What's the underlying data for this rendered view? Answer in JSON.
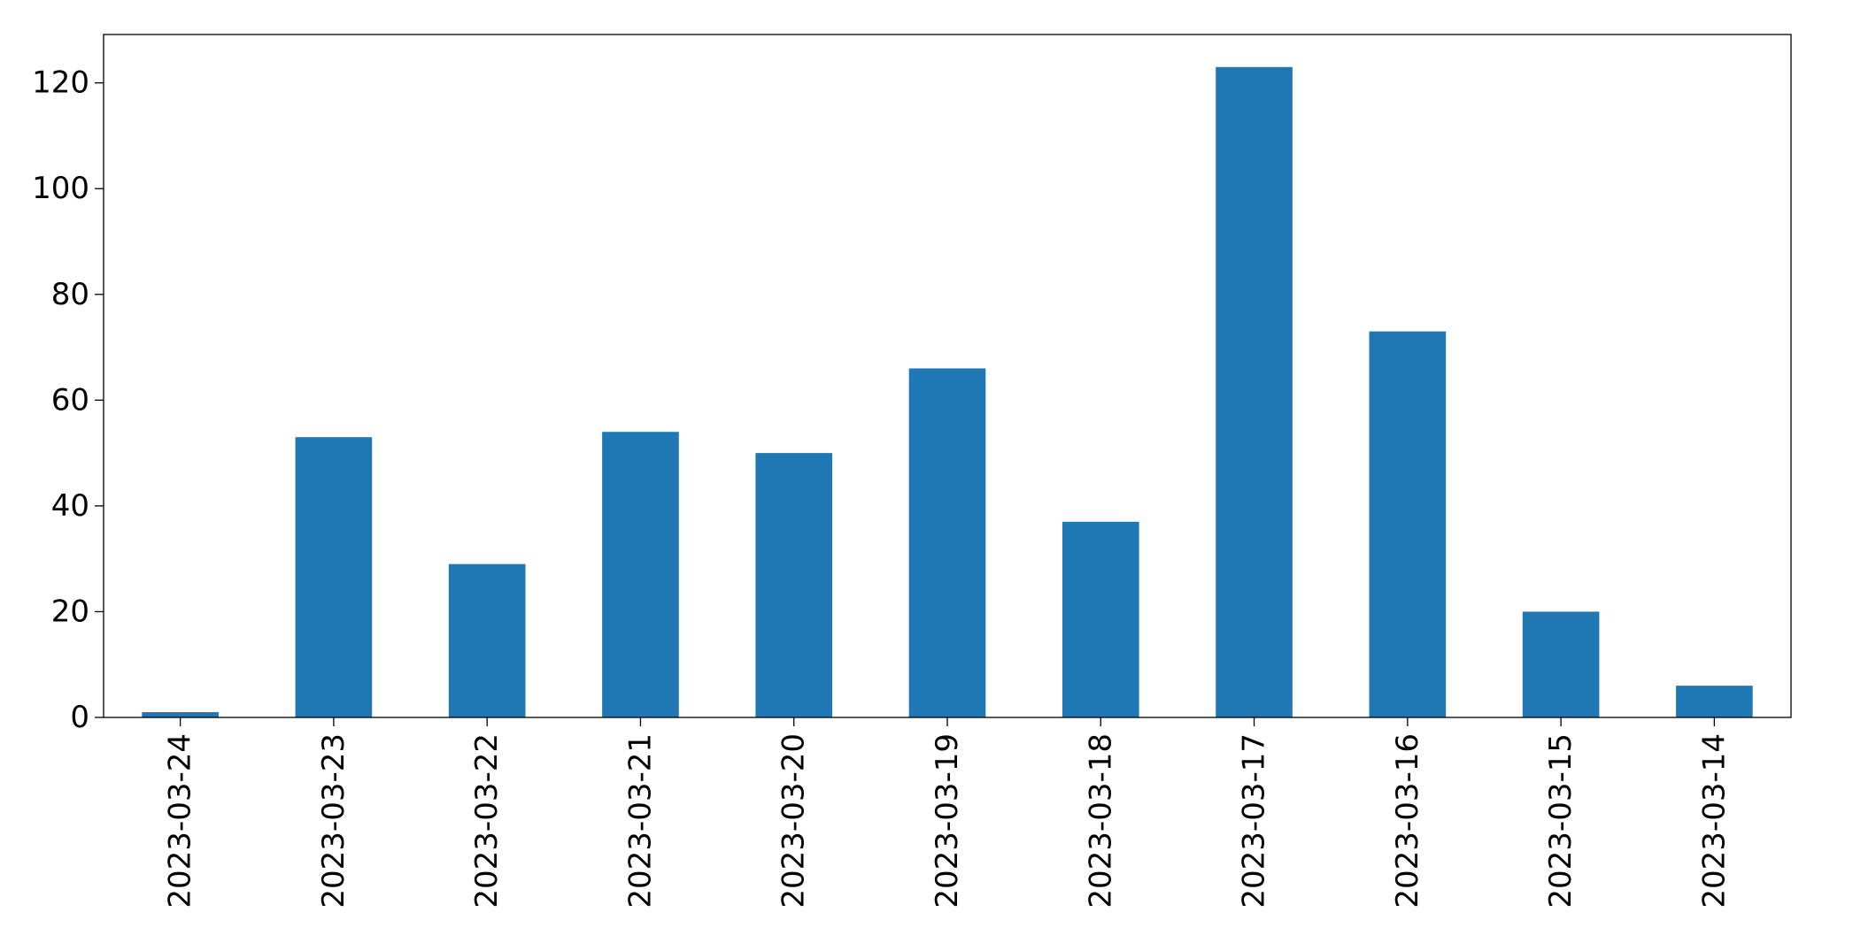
{
  "chart_data": {
    "type": "bar",
    "title": "",
    "xlabel": "",
    "ylabel": "",
    "categories": [
      "2023-03-24",
      "2023-03-23",
      "2023-03-22",
      "2023-03-21",
      "2023-03-20",
      "2023-03-19",
      "2023-03-18",
      "2023-03-17",
      "2023-03-16",
      "2023-03-15",
      "2023-03-14"
    ],
    "values": [
      1,
      53,
      29,
      54,
      50,
      66,
      37,
      123,
      73,
      20,
      6
    ],
    "ylim": [
      0,
      129.15
    ],
    "yticks": [
      0,
      20,
      40,
      60,
      80,
      100,
      120
    ],
    "grid": false,
    "legend": "none",
    "bar_color": "#1f77b4"
  }
}
